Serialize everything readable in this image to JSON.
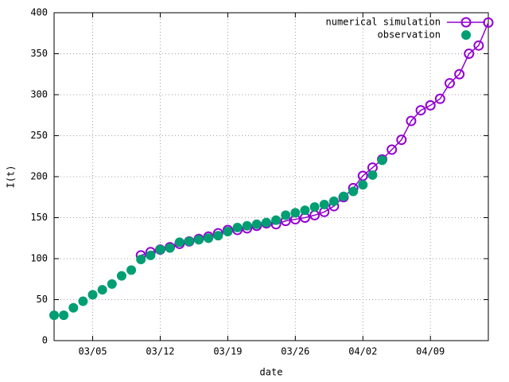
{
  "chart_data": {
    "type": "line",
    "x_label": "date",
    "y_label": "I(t)",
    "x": [
      "03/01",
      "03/02",
      "03/03",
      "03/04",
      "03/05",
      "03/06",
      "03/07",
      "03/08",
      "03/09",
      "03/10",
      "03/11",
      "03/12",
      "03/13",
      "03/14",
      "03/15",
      "03/16",
      "03/17",
      "03/18",
      "03/19",
      "03/20",
      "03/21",
      "03/22",
      "03/23",
      "03/24",
      "03/25",
      "03/26",
      "03/27",
      "03/28",
      "03/29",
      "03/30",
      "03/31",
      "04/01",
      "04/02",
      "04/03",
      "04/04",
      "04/05",
      "04/06",
      "04/07",
      "04/08",
      "04/09",
      "04/10",
      "04/11",
      "04/12",
      "04/13",
      "04/14",
      "04/15"
    ],
    "series": [
      {
        "name": "numerical simulation",
        "color": "#9400d3",
        "style": "line-circles",
        "values": [
          null,
          null,
          null,
          null,
          null,
          null,
          null,
          null,
          null,
          104,
          108,
          111,
          114,
          118,
          121,
          124,
          127,
          131,
          135,
          135,
          137,
          140,
          143,
          142,
          146,
          148,
          150,
          153,
          157,
          164,
          175,
          186,
          201,
          211,
          221,
          233,
          245,
          268,
          281,
          287,
          295,
          314,
          325,
          350,
          360,
          388
        ]
      },
      {
        "name": "observation",
        "color": "#009e73",
        "style": "dots",
        "values": [
          31,
          31,
          40,
          48,
          56,
          62,
          69,
          79,
          86,
          99,
          104,
          111,
          113,
          120,
          121,
          123,
          125,
          128,
          133,
          138,
          140,
          142,
          144,
          147,
          153,
          156,
          159,
          163,
          166,
          170,
          176,
          182,
          190,
          202,
          220,
          null,
          null,
          null,
          null,
          null,
          null,
          null,
          null,
          null,
          null,
          null
        ]
      }
    ],
    "xlim": [
      "03/01",
      "04/15"
    ],
    "xticks": [
      "03/05",
      "03/12",
      "03/19",
      "03/26",
      "04/02",
      "04/09"
    ],
    "ylim": [
      0,
      400
    ],
    "yticks": [
      0,
      50,
      100,
      150,
      200,
      250,
      300,
      350,
      400
    ],
    "grid": true,
    "legend": "top-right"
  }
}
